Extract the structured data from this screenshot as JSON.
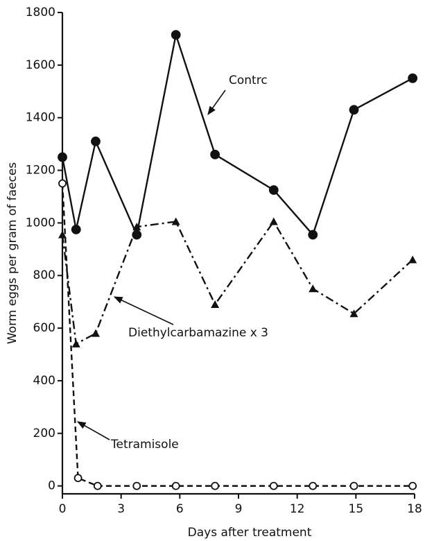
{
  "chart_data": {
    "type": "line",
    "xlabel": "Days after treatment",
    "ylabel": "Worm eggs per gram of faeces",
    "xlim": [
      0,
      18
    ],
    "xticks": [
      0,
      3,
      6,
      9,
      12,
      15,
      18
    ],
    "ylim": [
      -30,
      1800
    ],
    "yticks": [
      0,
      200,
      400,
      600,
      800,
      1000,
      1200,
      1400,
      1600,
      1800
    ],
    "series": [
      {
        "name": "Contrc",
        "color": "#111111",
        "line": "solid",
        "marker": "circle-filled",
        "x": [
          0,
          0.7,
          1.7,
          3.8,
          5.8,
          7.8,
          10.8,
          12.8,
          14.9,
          17.9
        ],
        "values": [
          1250,
          975,
          1310,
          955,
          1715,
          1260,
          1125,
          955,
          1430,
          1550
        ]
      },
      {
        "name": "Diethylcarbamazine x 3",
        "color": "#111111",
        "line": "dashdot",
        "marker": "triangle-filled",
        "x": [
          0,
          0.7,
          1.7,
          3.8,
          5.8,
          7.8,
          10.8,
          12.8,
          14.9,
          17.9
        ],
        "values": [
          955,
          540,
          580,
          985,
          1005,
          690,
          1005,
          750,
          655,
          860
        ]
      },
      {
        "name": "Tetramisole",
        "color": "#111111",
        "line": "dashed",
        "marker": "circle-open",
        "x": [
          0,
          0.8,
          1.8,
          3.8,
          5.8,
          7.8,
          10.8,
          12.8,
          14.9,
          17.9
        ],
        "values": [
          1150,
          30,
          0,
          0,
          0,
          0,
          0,
          0,
          0,
          0
        ]
      }
    ]
  }
}
